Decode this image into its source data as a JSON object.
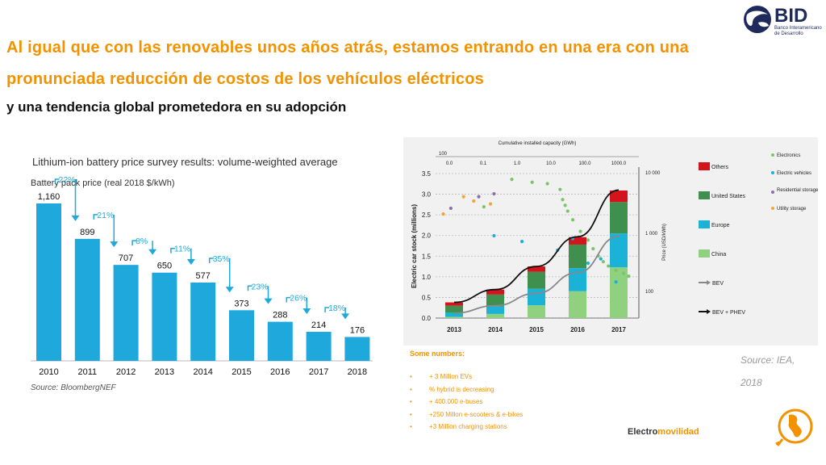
{
  "header": {
    "line1": "Al igual que con las renovables unos años atrás, estamos entrando en una era con una",
    "line2": "pronunciada reducción de costos de los vehículos eléctricos",
    "line3": "y una tendencia global prometedora en su adopción"
  },
  "logo": {
    "name": "BID",
    "subtitle": "Banco Interamericano de Desarrollo"
  },
  "colors": {
    "accent_orange": "#f39200",
    "bar_blue": "#1fa8dc",
    "logo_navy": "#1d2a5b"
  },
  "chart_data": [
    {
      "type": "bar",
      "title": "Lithium-ion battery price survey results: volume-weighted average",
      "ylabel": "Battery pack price (real 2018 $/kWh)",
      "source": "Source: BloombergNEF",
      "categories": [
        "2010",
        "2011",
        "2012",
        "2013",
        "2014",
        "2015",
        "2016",
        "2017",
        "2018"
      ],
      "values": [
        1160,
        899,
        707,
        650,
        577,
        373,
        288,
        214,
        176
      ],
      "value_labels": [
        "1,160",
        "899",
        "707",
        "650",
        "577",
        "373",
        "288",
        "214",
        "176"
      ],
      "declines": [
        "22%",
        "21%",
        "8%",
        "11%",
        "35%",
        "23%",
        "26%",
        "18%"
      ],
      "ylim": [
        0,
        1200
      ],
      "grid": false
    },
    {
      "type": "bar",
      "title": "",
      "ylabel": "Electric car stock (millions)",
      "categories": [
        "2013",
        "2014",
        "2015",
        "2016",
        "2017"
      ],
      "ylim": [
        0,
        3.5
      ],
      "yticks": [
        "0.0",
        "0.5",
        "1.0",
        "1.5",
        "2.0",
        "2.5",
        "3.0",
        "3.5"
      ],
      "series": [
        {
          "name": "China",
          "color": "#8fd17f",
          "values": [
            0.03,
            0.1,
            0.31,
            0.65,
            1.23
          ]
        },
        {
          "name": "Europe",
          "color": "#1ab2d6",
          "values": [
            0.1,
            0.18,
            0.4,
            0.56,
            0.82
          ]
        },
        {
          "name": "United States",
          "color": "#3f8f4f",
          "values": [
            0.17,
            0.29,
            0.41,
            0.57,
            0.76
          ]
        },
        {
          "name": "Others",
          "color": "#d4141c",
          "values": [
            0.08,
            0.12,
            0.13,
            0.18,
            0.28
          ]
        }
      ],
      "lines": [
        {
          "name": "BEV",
          "color": "#888888",
          "values": [
            0.12,
            0.3,
            0.6,
            1.1,
            1.98
          ]
        },
        {
          "name": "BEV + PHEV",
          "color": "#111111",
          "values": [
            0.38,
            0.69,
            1.25,
            1.97,
            3.1
          ]
        }
      ],
      "top_axis_label": "Cumulative installed capacity (GWh)",
      "top_axis_ticks": [
        "0.0",
        "0.1",
        "1.0",
        "10.0",
        "100.0",
        "1000.0"
      ],
      "top_axis_left": "100",
      "right_axis_label": "Price (USD/kWh)",
      "right_axis_ticks": [
        "10 000",
        "1 000",
        "100"
      ],
      "scatter_legend": [
        {
          "name": "Electronics",
          "color": "#7cc46a"
        },
        {
          "name": "Electric vehicles",
          "color": "#1ab2d6"
        },
        {
          "name": "Residential storage",
          "color": "#8a6fa8"
        },
        {
          "name": "Utility storage",
          "color": "#f3a53a"
        }
      ],
      "scatter_points": [
        {
          "series": "Utility storage",
          "x": 0.15,
          "y": 0.72
        },
        {
          "series": "Utility storage",
          "x": 0.55,
          "y": 0.84
        },
        {
          "series": "Utility storage",
          "x": 0.75,
          "y": 0.81
        },
        {
          "series": "Utility storage",
          "x": 1.08,
          "y": 0.79
        },
        {
          "series": "Residential storage",
          "x": 0.3,
          "y": 0.76
        },
        {
          "series": "Residential storage",
          "x": 0.85,
          "y": 0.84
        },
        {
          "series": "Residential storage",
          "x": 1.15,
          "y": 0.86
        },
        {
          "series": "Electronics",
          "x": 0.95,
          "y": 0.77
        },
        {
          "series": "Electronics",
          "x": 1.5,
          "y": 0.96
        },
        {
          "series": "Electronics",
          "x": 1.9,
          "y": 0.94
        },
        {
          "series": "Electronics",
          "x": 2.2,
          "y": 0.93
        },
        {
          "series": "Electronics",
          "x": 2.45,
          "y": 0.89
        },
        {
          "series": "Electronics",
          "x": 2.5,
          "y": 0.82
        },
        {
          "series": "Electronics",
          "x": 2.55,
          "y": 0.78
        },
        {
          "series": "Electronics",
          "x": 2.6,
          "y": 0.74
        },
        {
          "series": "Electronics",
          "x": 2.7,
          "y": 0.68
        },
        {
          "series": "Electronics",
          "x": 2.85,
          "y": 0.6
        },
        {
          "series": "Electronics",
          "x": 3.0,
          "y": 0.54
        },
        {
          "series": "Electronics",
          "x": 3.1,
          "y": 0.48
        },
        {
          "series": "Electronics",
          "x": 3.2,
          "y": 0.43
        },
        {
          "series": "Electronics",
          "x": 3.3,
          "y": 0.39
        },
        {
          "series": "Electronics",
          "x": 3.4,
          "y": 0.36
        },
        {
          "series": "Electronics",
          "x": 3.55,
          "y": 0.33
        },
        {
          "series": "Electronics",
          "x": 3.7,
          "y": 0.31
        },
        {
          "series": "Electronics",
          "x": 3.8,
          "y": 0.29
        },
        {
          "series": "Electric vehicles",
          "x": 1.15,
          "y": 0.57
        },
        {
          "series": "Electric vehicles",
          "x": 1.7,
          "y": 0.53
        },
        {
          "series": "Electric vehicles",
          "x": 2.4,
          "y": 0.47
        },
        {
          "series": "Electric vehicles",
          "x": 2.7,
          "y": 0.55
        },
        {
          "series": "Electric vehicles",
          "x": 3.0,
          "y": 0.38
        },
        {
          "series": "Electric vehicles",
          "x": 3.25,
          "y": 0.41
        },
        {
          "series": "Electric vehicles",
          "x": 3.55,
          "y": 0.25
        }
      ]
    }
  ],
  "source_iea": "Source: IEA, 2018",
  "numbers": {
    "title": "Some numbers:",
    "items": [
      "+ 3 Million EVs",
      "% hybrid is decreasing",
      "+ 400.000 e-buses",
      "+250 Millon e-scooters & e-bikes",
      "+3 Million charging stations"
    ]
  },
  "footer": {
    "brand_part1": "Electro",
    "brand_part2": "movilidad"
  }
}
